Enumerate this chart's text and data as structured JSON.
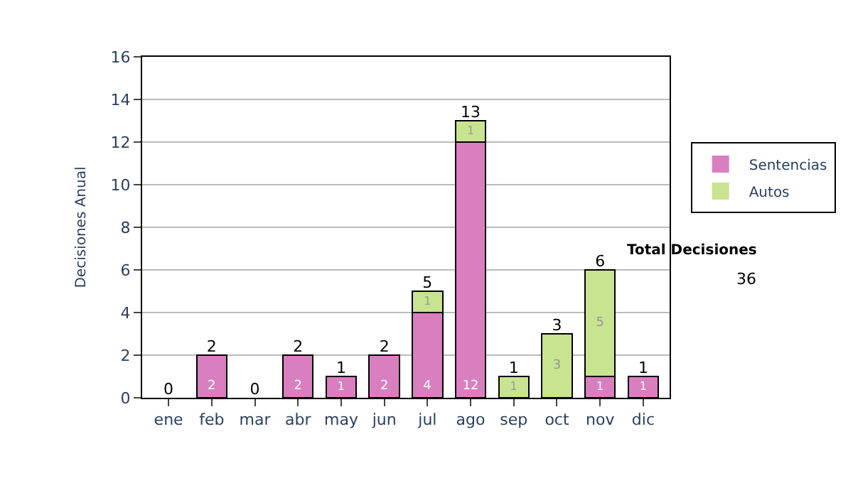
{
  "chart_data": {
    "type": "bar",
    "stacked": true,
    "ylabel": "Decisiones Anual",
    "categories": [
      "ene",
      "feb",
      "mar",
      "abr",
      "may",
      "jun",
      "jul",
      "ago",
      "sep",
      "oct",
      "nov",
      "dic"
    ],
    "series": [
      {
        "name": "Sentencias",
        "color": "#d97fc0",
        "values": [
          0,
          2,
          0,
          2,
          1,
          2,
          4,
          12,
          0,
          0,
          1,
          1
        ],
        "value_labels": [
          null,
          "2",
          null,
          "2",
          "1",
          "2",
          "4",
          "12",
          null,
          null,
          "1",
          "1"
        ]
      },
      {
        "name": "Autos",
        "color": "#c8e490",
        "values": [
          0,
          0,
          0,
          0,
          0,
          0,
          1,
          1,
          1,
          3,
          5,
          0
        ],
        "value_labels": [
          null,
          null,
          null,
          null,
          null,
          null,
          "1",
          "1",
          "1",
          "3",
          "5",
          null
        ]
      }
    ],
    "totals": [
      "0",
      "2",
      "0",
      "2",
      "1",
      "2",
      "5",
      "13",
      "1",
      "3",
      "6",
      "1"
    ],
    "ylim": [
      0,
      16
    ],
    "yticks": [
      0,
      2,
      4,
      6,
      8,
      10,
      12,
      14,
      16
    ],
    "grid": "y",
    "legend": "right",
    "annotations": [
      "Total Decisiones",
      "36"
    ]
  }
}
